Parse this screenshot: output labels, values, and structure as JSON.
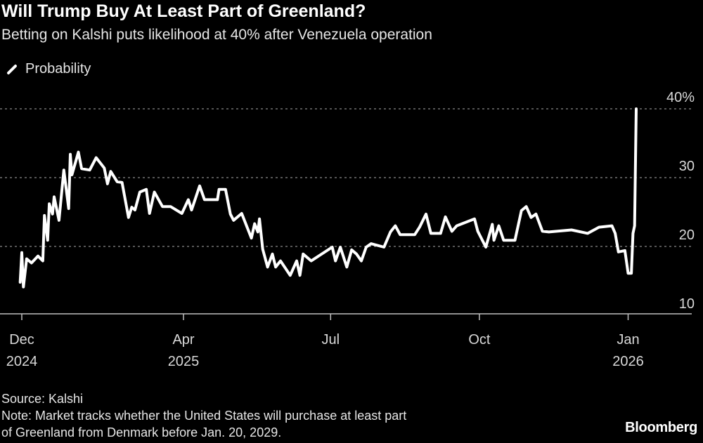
{
  "title": "Will Trump Buy At Least Part of Greenland?",
  "subtitle": "Betting on Kalshi puts likelihood at 40% after Venezuela operation",
  "footer": {
    "source": "Source: Kalshi",
    "note_line1": "Note: Market tracks whether the United States will purchase at least part",
    "note_line2": "of Greenland from Denmark before Jan. 20, 2029."
  },
  "logo": "Bloomberg",
  "chart_data": {
    "type": "line",
    "title": "Will Trump Buy At Least Part of Greenland?",
    "legend": {
      "entries": [
        "Probability"
      ],
      "placement": "top-left"
    },
    "ylim": [
      10,
      40
    ],
    "y_ticks": [
      {
        "value": 10,
        "label": "10"
      },
      {
        "value": 20,
        "label": "20"
      },
      {
        "value": 30,
        "label": "30"
      },
      {
        "value": 40,
        "label": "40%"
      }
    ],
    "y_axis_side": "right",
    "grid": "horizontal dotted",
    "x_ticks": [
      {
        "date": "2024-12-22",
        "month": "Dec",
        "year": "2024"
      },
      {
        "date": "2025-04-01",
        "month": "Apr",
        "year": "2025"
      },
      {
        "date": "2025-07-01",
        "month": "Jul",
        "year": ""
      },
      {
        "date": "2025-10-01",
        "month": "Oct",
        "year": ""
      },
      {
        "date": "2026-01-01",
        "month": "Jan",
        "year": "2026"
      }
    ],
    "colors": {
      "line": "#ffffff",
      "background": "#000000",
      "grid": "#8a8a8a"
    },
    "series": [
      {
        "name": "Probability",
        "points": [
          [
            "2024-12-21",
            14.8
          ],
          [
            "2024-12-22",
            19.1
          ],
          [
            "2024-12-23",
            14.1
          ],
          [
            "2024-12-25",
            18.2
          ],
          [
            "2024-12-28",
            17.6
          ],
          [
            "2025-01-01",
            18.6
          ],
          [
            "2025-01-04",
            17.9
          ],
          [
            "2025-01-05",
            24.5
          ],
          [
            "2025-01-07",
            20.9
          ],
          [
            "2025-01-08",
            26.2
          ],
          [
            "2025-01-10",
            24.7
          ],
          [
            "2025-01-11",
            27.2
          ],
          [
            "2025-01-14",
            23.8
          ],
          [
            "2025-01-17",
            31.1
          ],
          [
            "2025-01-20",
            25.5
          ],
          [
            "2025-01-21",
            33.4
          ],
          [
            "2025-01-22",
            30.4
          ],
          [
            "2025-01-26",
            33.7
          ],
          [
            "2025-01-28",
            31.3
          ],
          [
            "2025-02-02",
            31.1
          ],
          [
            "2025-02-06",
            32.9
          ],
          [
            "2025-02-11",
            31.4
          ],
          [
            "2025-02-13",
            29.1
          ],
          [
            "2025-02-15",
            30.9
          ],
          [
            "2025-02-19",
            29.4
          ],
          [
            "2025-02-22",
            29.3
          ],
          [
            "2025-02-26",
            24.2
          ],
          [
            "2025-02-28",
            25.7
          ],
          [
            "2025-03-02",
            25.3
          ],
          [
            "2025-03-05",
            27.9
          ],
          [
            "2025-03-09",
            28.3
          ],
          [
            "2025-03-11",
            24.8
          ],
          [
            "2025-03-14",
            27.9
          ],
          [
            "2025-03-19",
            25.8
          ],
          [
            "2025-03-24",
            25.8
          ],
          [
            "2025-03-31",
            24.8
          ],
          [
            "2025-04-04",
            26.8
          ],
          [
            "2025-04-06",
            25.3
          ],
          [
            "2025-04-11",
            28.8
          ],
          [
            "2025-04-14",
            26.8
          ],
          [
            "2025-04-22",
            26.8
          ],
          [
            "2025-04-23",
            28.3
          ],
          [
            "2025-04-27",
            28.3
          ],
          [
            "2025-04-30",
            24.7
          ],
          [
            "2025-05-02",
            23.8
          ],
          [
            "2025-05-07",
            24.8
          ],
          [
            "2025-05-13",
            21.2
          ],
          [
            "2025-05-15",
            23.3
          ],
          [
            "2025-05-17",
            22.1
          ],
          [
            "2025-05-18",
            24.0
          ],
          [
            "2025-05-20",
            19.6
          ],
          [
            "2025-05-23",
            17.0
          ],
          [
            "2025-05-26",
            18.9
          ],
          [
            "2025-05-28",
            17.0
          ],
          [
            "2025-05-31",
            17.9
          ],
          [
            "2025-06-06",
            15.8
          ],
          [
            "2025-06-10",
            17.9
          ],
          [
            "2025-06-12",
            15.8
          ],
          [
            "2025-06-14",
            18.9
          ],
          [
            "2025-06-19",
            17.9
          ],
          [
            "2025-07-02",
            19.9
          ],
          [
            "2025-07-04",
            17.9
          ],
          [
            "2025-07-07",
            19.9
          ],
          [
            "2025-07-11",
            17.0
          ],
          [
            "2025-07-14",
            19.5
          ],
          [
            "2025-07-17",
            18.9
          ],
          [
            "2025-07-20",
            17.9
          ],
          [
            "2025-07-23",
            19.9
          ],
          [
            "2025-07-26",
            20.4
          ],
          [
            "2025-08-03",
            19.9
          ],
          [
            "2025-08-07",
            22.1
          ],
          [
            "2025-08-10",
            23.0
          ],
          [
            "2025-08-13",
            21.7
          ],
          [
            "2025-08-22",
            21.7
          ],
          [
            "2025-08-25",
            22.8
          ],
          [
            "2025-08-29",
            24.7
          ],
          [
            "2025-09-01",
            21.9
          ],
          [
            "2025-09-07",
            21.9
          ],
          [
            "2025-09-10",
            24.3
          ],
          [
            "2025-09-14",
            22.2
          ],
          [
            "2025-09-17",
            23.0
          ],
          [
            "2025-09-28",
            24.0
          ],
          [
            "2025-09-30",
            22.2
          ],
          [
            "2025-10-05",
            19.9
          ],
          [
            "2025-10-09",
            23.2
          ],
          [
            "2025-10-10",
            20.9
          ],
          [
            "2025-10-13",
            23.0
          ],
          [
            "2025-10-16",
            20.9
          ],
          [
            "2025-10-23",
            20.9
          ],
          [
            "2025-10-27",
            25.2
          ],
          [
            "2025-10-30",
            25.8
          ],
          [
            "2025-11-02",
            24.2
          ],
          [
            "2025-11-05",
            24.7
          ],
          [
            "2025-11-09",
            22.2
          ],
          [
            "2025-11-13",
            22.1
          ],
          [
            "2025-11-27",
            22.4
          ],
          [
            "2025-12-07",
            21.9
          ],
          [
            "2025-12-14",
            22.8
          ],
          [
            "2025-12-22",
            23.0
          ],
          [
            "2025-12-24",
            21.9
          ],
          [
            "2025-12-26",
            19.2
          ],
          [
            "2025-12-30",
            19.4
          ],
          [
            "2026-01-01",
            16.1
          ],
          [
            "2026-01-03",
            16.1
          ],
          [
            "2026-01-04",
            21.9
          ],
          [
            "2026-01-05",
            23.0
          ],
          [
            "2026-01-06",
            40.0
          ]
        ]
      }
    ]
  }
}
